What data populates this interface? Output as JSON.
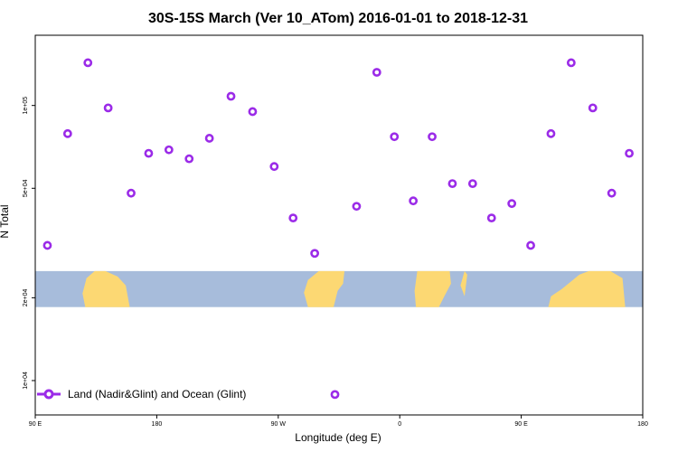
{
  "chart_data": {
    "type": "scatter",
    "title": "30S-15S March (Ver 10_ATom)   2016-01-01 to 2018-12-31",
    "xlabel": "Longitude (deg E)",
    "ylabel": "N Total",
    "x_scale": "linear",
    "y_scale": "log",
    "xlim": [
      90,
      540
    ],
    "ylim": [
      7500,
      180000
    ],
    "x_ticks": [
      {
        "value": 90,
        "label": "90 E"
      },
      {
        "value": 180,
        "label": "180"
      },
      {
        "value": 270,
        "label": "90 W"
      },
      {
        "value": 360,
        "label": "0"
      },
      {
        "value": 450,
        "label": "90 E"
      },
      {
        "value": 540,
        "label": "180"
      }
    ],
    "y_ticks": [
      {
        "value": 10000,
        "label": "1e+04"
      },
      {
        "value": 20000,
        "label": "2e+04"
      },
      {
        "value": 50000,
        "label": "5e+04"
      },
      {
        "value": 100000,
        "label": "1e+05"
      }
    ],
    "grid": false,
    "legend_position": "bottom-left",
    "map_band": {
      "lat_range": "30S-15S",
      "y_from": 18500,
      "y_to": 25000,
      "ocean_color": "#a7bcdb",
      "land_color": "#fcd873"
    },
    "series": [
      {
        "name": "Land (Nadir&Glint) and Ocean (Glint)",
        "color": "#9b2be8",
        "marker": "open-circle",
        "x": [
          99,
          114,
          129,
          144,
          161,
          174,
          189,
          204,
          219,
          235,
          251,
          267,
          281,
          297,
          312,
          328,
          343,
          356,
          370,
          384,
          399,
          414,
          428,
          443,
          457,
          472,
          487,
          503,
          517,
          530
        ],
        "y": [
          31000,
          79000,
          143000,
          98000,
          48000,
          67000,
          69000,
          64000,
          76000,
          108000,
          95000,
          60000,
          39000,
          29000,
          8900,
          43000,
          132000,
          77000,
          45000,
          77000,
          52000,
          52000,
          39000,
          44000,
          31000,
          79000,
          143000,
          98000,
          48000,
          67000
        ]
      }
    ]
  }
}
